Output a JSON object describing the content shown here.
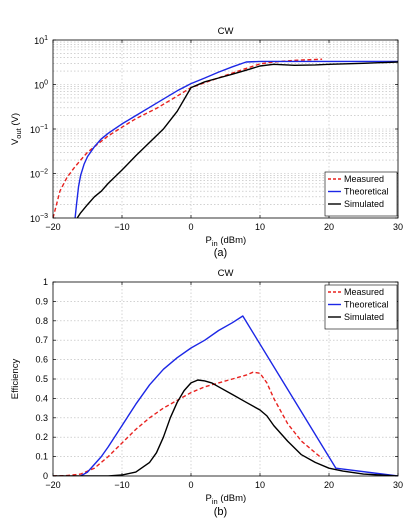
{
  "chart_data": [
    {
      "type": "line",
      "title": "CW",
      "xlabel": "P",
      "xlabel_sub": "in",
      "xlabel_unit": "(dBm)",
      "ylabel": "V",
      "ylabel_sub": "out",
      "ylabel_unit": "(V)",
      "caption": "(a)",
      "xlim": [
        -20,
        30
      ],
      "ylim": [
        0.001,
        10
      ],
      "yscale": "log",
      "xticks": [
        -20,
        -10,
        0,
        10,
        20,
        30
      ],
      "xtick_labels": [
        "−20",
        "−10",
        "0",
        "10",
        "20",
        "30"
      ],
      "yticks": [
        0.001,
        0.01,
        0.1,
        1,
        10
      ],
      "ytick_base": "10",
      "ytick_exponents": [
        "−3",
        "−2",
        "−1",
        "0",
        "1"
      ],
      "grid": true,
      "legend_position": "bottom-right",
      "series": [
        {
          "name": "Measured",
          "color": "#e8221f",
          "style": "dashed",
          "x": [
            -20,
            -19.5,
            -19,
            -18,
            -17,
            -16,
            -15,
            -14,
            -12,
            -10,
            -8,
            -5,
            -2,
            0,
            2,
            5,
            8,
            10,
            12,
            15,
            19
          ],
          "y": [
            0.001,
            0.002,
            0.004,
            0.008,
            0.013,
            0.02,
            0.03,
            0.04,
            0.07,
            0.11,
            0.17,
            0.29,
            0.55,
            0.85,
            1.1,
            1.6,
            2.3,
            2.9,
            3.2,
            3.5,
            3.7
          ]
        },
        {
          "name": "Theoretical",
          "color": "#1c27e6",
          "style": "solid",
          "x": [
            -16.8,
            -16.6,
            -16.3,
            -16,
            -15.5,
            -15,
            -14,
            -13,
            -12,
            -10,
            -8,
            -5,
            -2,
            0,
            2,
            4,
            6,
            8,
            10,
            20,
            30
          ],
          "y": [
            0.001,
            0.002,
            0.005,
            0.009,
            0.016,
            0.024,
            0.04,
            0.06,
            0.08,
            0.13,
            0.2,
            0.38,
            0.72,
            1.05,
            1.4,
            1.9,
            2.5,
            3.2,
            3.3,
            3.3,
            3.3
          ]
        },
        {
          "name": "Simulated",
          "color": "#000000",
          "style": "solid",
          "x": [
            -16.5,
            -16,
            -15,
            -14,
            -13,
            -12,
            -10,
            -8,
            -6,
            -4,
            -2,
            0,
            2,
            4,
            6,
            8,
            10,
            12,
            15,
            18,
            20,
            25,
            30
          ],
          "y": [
            0.001,
            0.0013,
            0.002,
            0.003,
            0.004,
            0.006,
            0.012,
            0.025,
            0.05,
            0.1,
            0.25,
            0.85,
            1.15,
            1.4,
            1.7,
            2.1,
            2.6,
            2.85,
            2.7,
            2.75,
            2.85,
            3.0,
            3.2
          ]
        }
      ]
    },
    {
      "type": "line",
      "title": "CW",
      "xlabel": "P",
      "xlabel_sub": "in",
      "xlabel_unit": "(dBm)",
      "ylabel": "Efficiency",
      "caption": "(b)",
      "xlim": [
        -20,
        30
      ],
      "ylim": [
        0,
        1
      ],
      "xticks": [
        -20,
        -10,
        0,
        10,
        20,
        30
      ],
      "xtick_labels": [
        "−20",
        "−10",
        "0",
        "10",
        "20",
        "30"
      ],
      "yticks": [
        0,
        0.1,
        0.2,
        0.3,
        0.4,
        0.5,
        0.6,
        0.7,
        0.8,
        0.9,
        1
      ],
      "ytick_labels": [
        "0",
        "0.1",
        "0.2",
        "0.3",
        "0.4",
        "0.5",
        "0.6",
        "0.7",
        "0.8",
        "0.9",
        "1"
      ],
      "grid": true,
      "legend_position": "top-right",
      "series": [
        {
          "name": "Measured",
          "color": "#e8221f",
          "style": "dashed",
          "x": [
            -20,
            -18,
            -16,
            -14,
            -12,
            -10,
            -8,
            -6,
            -4,
            -2,
            0,
            2,
            4,
            6,
            8,
            9,
            10,
            11,
            12,
            14,
            16,
            19
          ],
          "y": [
            0,
            0.002,
            0.01,
            0.04,
            0.1,
            0.17,
            0.24,
            0.3,
            0.35,
            0.39,
            0.43,
            0.46,
            0.48,
            0.5,
            0.52,
            0.535,
            0.53,
            0.48,
            0.4,
            0.27,
            0.18,
            0.09
          ]
        },
        {
          "name": "Theoretical",
          "color": "#1c27e6",
          "style": "solid",
          "x": [
            -16,
            -15,
            -14,
            -13,
            -12,
            -10,
            -8,
            -6,
            -4,
            -2,
            0,
            2,
            4,
            6,
            7.5,
            21,
            30
          ],
          "y": [
            0,
            0.02,
            0.06,
            0.1,
            0.15,
            0.26,
            0.37,
            0.47,
            0.55,
            0.61,
            0.66,
            0.7,
            0.75,
            0.79,
            0.825,
            0.04,
            0
          ]
        },
        {
          "name": "Simulated",
          "color": "#000000",
          "style": "solid",
          "x": [
            -20,
            -12,
            -10,
            -8,
            -6,
            -5,
            -4,
            -3,
            -2,
            -1,
            0,
            1,
            2,
            3,
            4,
            6,
            8,
            10,
            11,
            12,
            14,
            16,
            18,
            20,
            22,
            25,
            30
          ],
          "y": [
            0,
            0,
            0.005,
            0.02,
            0.07,
            0.12,
            0.2,
            0.3,
            0.38,
            0.44,
            0.48,
            0.495,
            0.49,
            0.48,
            0.46,
            0.42,
            0.38,
            0.34,
            0.31,
            0.26,
            0.18,
            0.11,
            0.07,
            0.04,
            0.025,
            0.01,
            0
          ]
        }
      ]
    }
  ]
}
